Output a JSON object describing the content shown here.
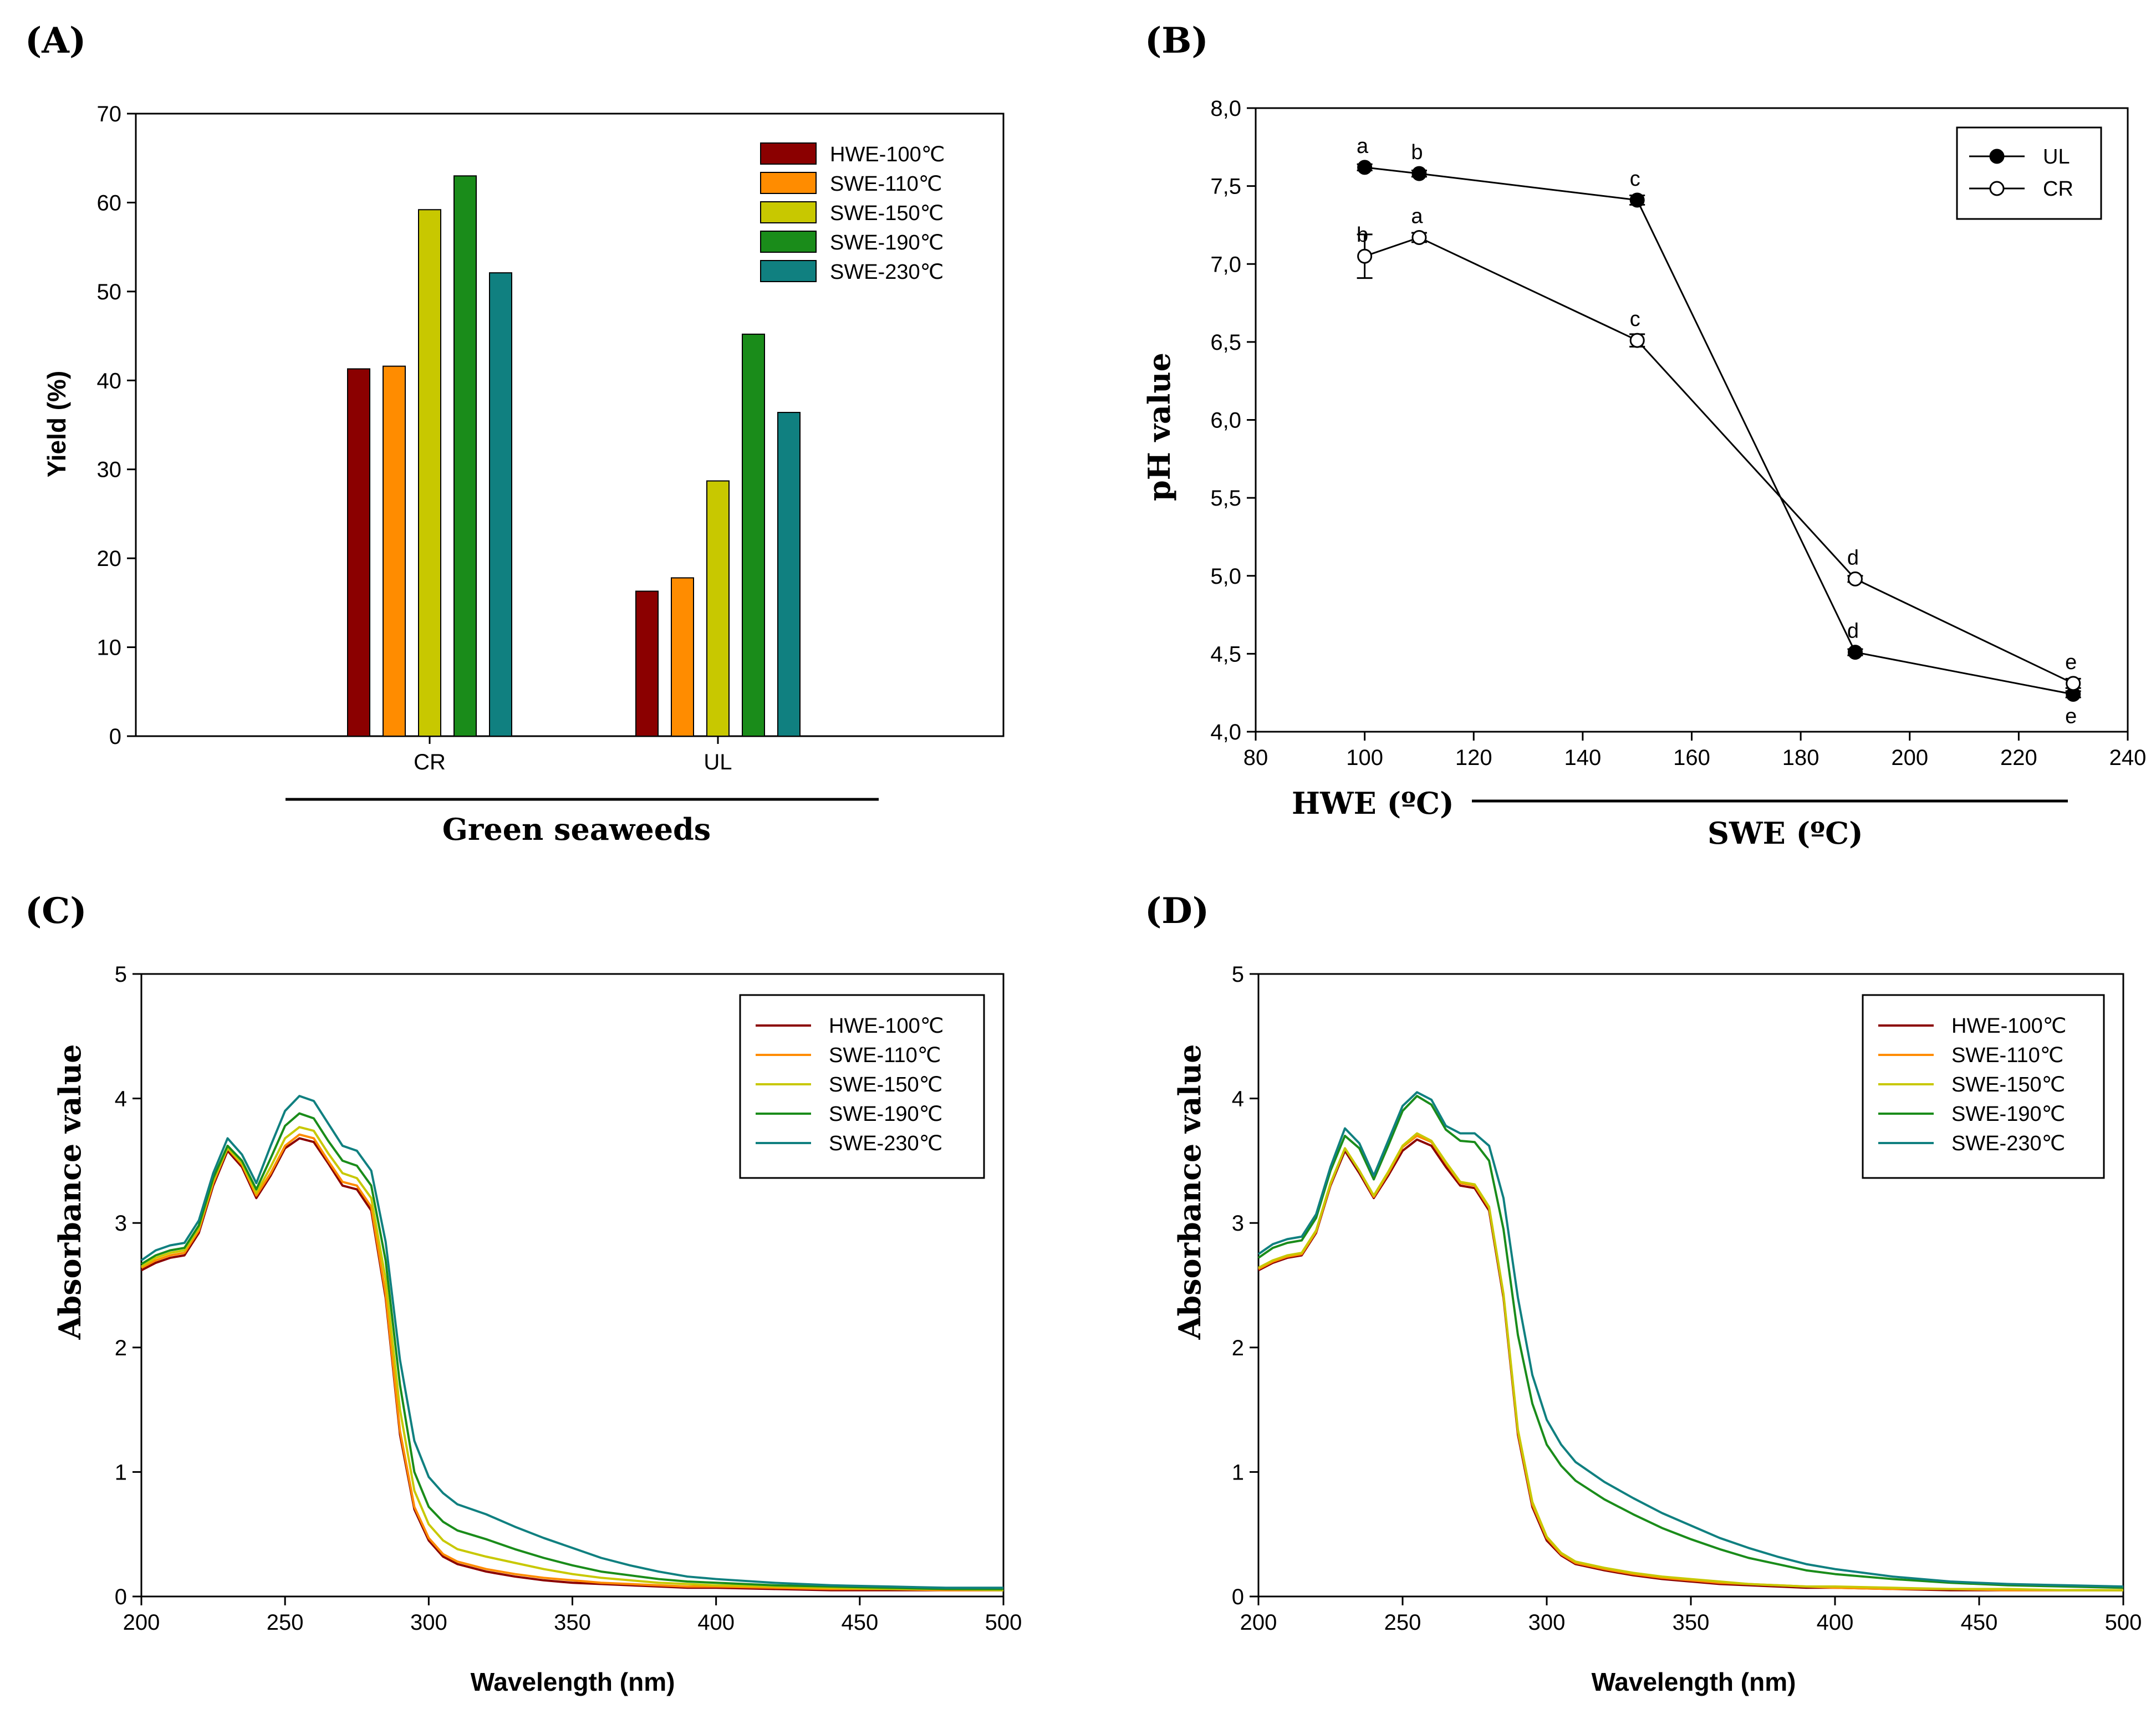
{
  "panels": [
    {
      "label": "(A)"
    },
    {
      "label": "(B)"
    },
    {
      "label": "(C)"
    },
    {
      "label": "(D)"
    }
  ],
  "colors": {
    "HWE-100": "#8b0000",
    "SWE-110": "#ff8c00",
    "SWE-150": "#c8c800",
    "SWE-190": "#1a8c1a",
    "SWE-230": "#108080"
  },
  "chart_data": [
    {
      "id": "A",
      "type": "bar",
      "ylabel": "Yield (%)",
      "xlabel": "Green seaweeds",
      "ylim": [
        0,
        70
      ],
      "yticks": [
        "0",
        "10",
        "20",
        "30",
        "40",
        "50",
        "60",
        "70"
      ],
      "categories": [
        "CR",
        "UL"
      ],
      "series": [
        {
          "name": "HWE-100℃",
          "key": "HWE-100",
          "values": [
            41.3,
            16.3
          ]
        },
        {
          "name": "SWE-110℃",
          "key": "SWE-110",
          "values": [
            41.6,
            17.8
          ]
        },
        {
          "name": "SWE-150℃",
          "key": "SWE-150",
          "values": [
            59.2,
            28.7
          ]
        },
        {
          "name": "SWE-190℃",
          "key": "SWE-190",
          "values": [
            63.0,
            45.2
          ]
        },
        {
          "name": "SWE-230℃",
          "key": "SWE-230",
          "values": [
            52.1,
            36.4
          ]
        }
      ],
      "legend": "top-right"
    },
    {
      "id": "B",
      "type": "line",
      "ylabel": "pH  value",
      "xlabel_left": "HWE (ºC)",
      "xlabel_right": "SWE (ºC)",
      "xlim": [
        80,
        240
      ],
      "xticks": [
        "80",
        "100",
        "120",
        "140",
        "160",
        "180",
        "200",
        "220",
        "240"
      ],
      "ylim": [
        4.0,
        8.0
      ],
      "yticks": [
        "4,0",
        "4,5",
        "5,0",
        "5,5",
        "6,0",
        "6,5",
        "7,0",
        "7,5",
        "8,0"
      ],
      "x": [
        100,
        110,
        150,
        190,
        230
      ],
      "series": [
        {
          "name": "UL",
          "marker": "filled",
          "values": [
            7.62,
            7.58,
            7.41,
            4.51,
            4.24
          ],
          "errors": [
            0.02,
            0.02,
            0.03,
            0.02,
            0.02
          ],
          "letters": [
            "a",
            "b",
            "c",
            "d",
            "e"
          ],
          "letter_pos": [
            "above",
            "above",
            "above",
            "above",
            "below"
          ]
        },
        {
          "name": "CR",
          "marker": "open",
          "values": [
            7.05,
            7.17,
            6.51,
            4.98,
            4.31
          ],
          "errors": [
            0.14,
            0.03,
            0.04,
            0.02,
            0.03
          ],
          "letters": [
            "b",
            "a",
            "c",
            "d",
            "e"
          ],
          "letter_pos": [
            "above",
            "above",
            "above",
            "above",
            "above"
          ]
        }
      ],
      "legend": "top-right"
    },
    {
      "id": "C",
      "type": "line",
      "ylabel": "Absorbance value",
      "xlabel": "Wavelength (nm)",
      "xlim": [
        200,
        500
      ],
      "xticks": [
        "200",
        "250",
        "300",
        "350",
        "400",
        "450",
        "500"
      ],
      "ylim": [
        0,
        5
      ],
      "yticks": [
        "0",
        "1",
        "2",
        "3",
        "4",
        "5"
      ],
      "x": [
        200,
        205,
        210,
        215,
        220,
        225,
        230,
        235,
        240,
        245,
        250,
        255,
        260,
        265,
        270,
        275,
        280,
        285,
        290,
        295,
        300,
        305,
        310,
        320,
        330,
        340,
        350,
        360,
        370,
        380,
        390,
        400,
        420,
        440,
        460,
        480,
        500
      ],
      "series": [
        {
          "name": "HWE-100℃",
          "key": "HWE-100",
          "values": [
            2.62,
            2.68,
            2.72,
            2.74,
            2.92,
            3.3,
            3.58,
            3.45,
            3.2,
            3.38,
            3.6,
            3.68,
            3.65,
            3.48,
            3.3,
            3.27,
            3.1,
            2.4,
            1.3,
            0.7,
            0.45,
            0.32,
            0.26,
            0.2,
            0.16,
            0.13,
            0.11,
            0.1,
            0.09,
            0.08,
            0.07,
            0.07,
            0.06,
            0.05,
            0.05,
            0.05,
            0.05
          ]
        },
        {
          "name": "SWE-110℃",
          "key": "SWE-110",
          "values": [
            2.64,
            2.7,
            2.74,
            2.76,
            2.94,
            3.32,
            3.6,
            3.47,
            3.22,
            3.4,
            3.62,
            3.71,
            3.68,
            3.5,
            3.33,
            3.3,
            3.13,
            2.43,
            1.33,
            0.72,
            0.47,
            0.34,
            0.28,
            0.22,
            0.18,
            0.15,
            0.13,
            0.11,
            0.1,
            0.09,
            0.08,
            0.08,
            0.07,
            0.06,
            0.06,
            0.05,
            0.05
          ]
        },
        {
          "name": "SWE-150℃",
          "key": "SWE-150",
          "values": [
            2.65,
            2.72,
            2.76,
            2.78,
            2.96,
            3.34,
            3.6,
            3.48,
            3.24,
            3.45,
            3.68,
            3.77,
            3.74,
            3.56,
            3.4,
            3.36,
            3.2,
            2.55,
            1.5,
            0.85,
            0.58,
            0.45,
            0.38,
            0.32,
            0.27,
            0.22,
            0.18,
            0.15,
            0.13,
            0.11,
            0.1,
            0.09,
            0.08,
            0.07,
            0.06,
            0.06,
            0.05
          ]
        },
        {
          "name": "SWE-190℃",
          "key": "SWE-190",
          "values": [
            2.67,
            2.74,
            2.78,
            2.8,
            2.98,
            3.36,
            3.62,
            3.5,
            3.27,
            3.52,
            3.78,
            3.88,
            3.84,
            3.66,
            3.5,
            3.46,
            3.3,
            2.7,
            1.7,
            1.0,
            0.72,
            0.6,
            0.53,
            0.46,
            0.38,
            0.31,
            0.25,
            0.2,
            0.17,
            0.14,
            0.12,
            0.11,
            0.09,
            0.08,
            0.07,
            0.06,
            0.06
          ]
        },
        {
          "name": "SWE-230℃",
          "key": "SWE-230",
          "values": [
            2.7,
            2.78,
            2.82,
            2.84,
            3.02,
            3.4,
            3.68,
            3.55,
            3.32,
            3.62,
            3.9,
            4.02,
            3.98,
            3.8,
            3.62,
            3.58,
            3.42,
            2.85,
            1.9,
            1.25,
            0.96,
            0.83,
            0.74,
            0.66,
            0.56,
            0.47,
            0.39,
            0.31,
            0.25,
            0.2,
            0.16,
            0.14,
            0.11,
            0.09,
            0.08,
            0.07,
            0.07
          ]
        }
      ],
      "legend": "top-right"
    },
    {
      "id": "D",
      "type": "line",
      "ylabel": "Absorbance value",
      "xlabel": "Wavelength (nm)",
      "xlim": [
        200,
        500
      ],
      "xticks": [
        "200",
        "250",
        "300",
        "350",
        "400",
        "450",
        "500"
      ],
      "ylim": [
        0,
        5
      ],
      "yticks": [
        "0",
        "1",
        "2",
        "3",
        "4",
        "5"
      ],
      "x": [
        200,
        205,
        210,
        215,
        220,
        225,
        230,
        235,
        240,
        245,
        250,
        255,
        260,
        265,
        270,
        275,
        280,
        285,
        290,
        295,
        300,
        305,
        310,
        320,
        330,
        340,
        350,
        360,
        370,
        380,
        390,
        400,
        420,
        440,
        460,
        480,
        500
      ],
      "series": [
        {
          "name": "HWE-100℃",
          "key": "HWE-100",
          "values": [
            2.62,
            2.68,
            2.72,
            2.74,
            2.92,
            3.3,
            3.58,
            3.4,
            3.2,
            3.38,
            3.58,
            3.67,
            3.62,
            3.45,
            3.3,
            3.28,
            3.1,
            2.4,
            1.3,
            0.72,
            0.45,
            0.33,
            0.26,
            0.21,
            0.17,
            0.14,
            0.12,
            0.1,
            0.09,
            0.08,
            0.07,
            0.07,
            0.06,
            0.05,
            0.05,
            0.05,
            0.05
          ]
        },
        {
          "name": "SWE-110℃",
          "key": "SWE-110",
          "values": [
            2.63,
            2.69,
            2.73,
            2.75,
            2.93,
            3.31,
            3.6,
            3.42,
            3.21,
            3.4,
            3.61,
            3.7,
            3.65,
            3.48,
            3.32,
            3.3,
            3.12,
            2.42,
            1.32,
            0.74,
            0.47,
            0.34,
            0.27,
            0.22,
            0.18,
            0.15,
            0.13,
            0.11,
            0.1,
            0.09,
            0.08,
            0.07,
            0.06,
            0.06,
            0.05,
            0.05,
            0.05
          ]
        },
        {
          "name": "SWE-150℃",
          "key": "SWE-150",
          "values": [
            2.64,
            2.7,
            2.74,
            2.76,
            2.94,
            3.32,
            3.6,
            3.42,
            3.22,
            3.41,
            3.62,
            3.72,
            3.66,
            3.49,
            3.33,
            3.31,
            3.13,
            2.43,
            1.34,
            0.76,
            0.48,
            0.35,
            0.28,
            0.23,
            0.19,
            0.16,
            0.14,
            0.12,
            0.1,
            0.09,
            0.08,
            0.08,
            0.07,
            0.06,
            0.06,
            0.05,
            0.05
          ]
        },
        {
          "name": "SWE-190℃",
          "key": "SWE-190",
          "values": [
            2.72,
            2.8,
            2.84,
            2.86,
            3.04,
            3.42,
            3.7,
            3.6,
            3.35,
            3.62,
            3.9,
            4.02,
            3.95,
            3.75,
            3.66,
            3.65,
            3.5,
            2.95,
            2.1,
            1.55,
            1.22,
            1.05,
            0.93,
            0.78,
            0.66,
            0.55,
            0.46,
            0.38,
            0.31,
            0.26,
            0.21,
            0.18,
            0.14,
            0.11,
            0.09,
            0.08,
            0.07
          ]
        },
        {
          "name": "SWE-230℃",
          "key": "SWE-230",
          "values": [
            2.75,
            2.83,
            2.87,
            2.89,
            3.07,
            3.45,
            3.76,
            3.64,
            3.38,
            3.66,
            3.94,
            4.05,
            3.99,
            3.78,
            3.72,
            3.72,
            3.62,
            3.2,
            2.4,
            1.78,
            1.42,
            1.22,
            1.08,
            0.92,
            0.79,
            0.67,
            0.57,
            0.47,
            0.39,
            0.32,
            0.26,
            0.22,
            0.16,
            0.12,
            0.1,
            0.09,
            0.08
          ]
        }
      ],
      "legend": "top-right"
    }
  ]
}
